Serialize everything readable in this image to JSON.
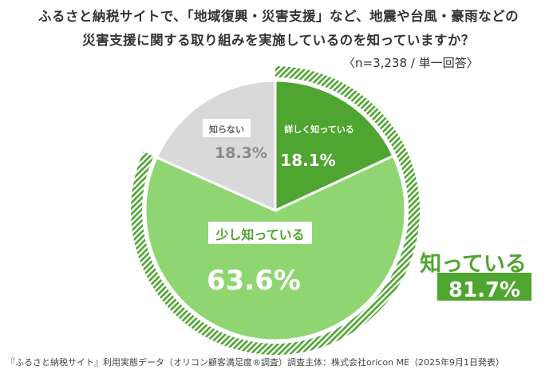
{
  "title_line1": "ふるさと納税サイトで、「地域復興・災害支援」など、地震や台風・豪雨などの",
  "title_line2": "災害支援に関する取り組みを実施しているのを知っていますか？",
  "sample_note": "〈n=3,238 / 単一回答〉",
  "footnote": "『ふるさと納税サイト』利用実態データ（オリコン顧客満足度®調査）調査主体：株式会社oricon ME（2025年9月1日発表）",
  "summary": {
    "label": "知っている",
    "value": "81.7%"
  },
  "chart_data": {
    "type": "pie",
    "start": "12 o'clock",
    "direction": "clockwise",
    "slices": [
      {
        "label": "詳しく知っている",
        "value": 18.1,
        "display": "18.1%",
        "color": "#4ea52f"
      },
      {
        "label": "少し知っている",
        "value": 63.6,
        "display": "63.6%",
        "color": "#8fd672"
      },
      {
        "label": "知らない",
        "value": 18.3,
        "display": "18.3%",
        "color": "#d9d9d9"
      }
    ],
    "group_arc": {
      "label": "知っている",
      "value": 81.7,
      "display": "81.7%",
      "color": "#4ea52f",
      "pattern": "diagonal-stripes"
    }
  }
}
